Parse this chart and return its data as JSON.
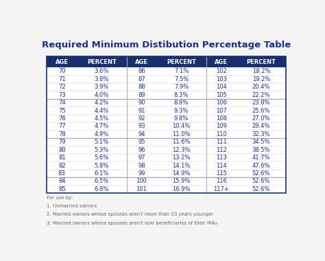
{
  "title": "Required Minimum Distibution Percentage Table",
  "title_color": "#1a2f8a",
  "header_bg": "#1a2f6e",
  "header_text_color": "#ffffff",
  "cell_text_color": "#1a2f8a",
  "separator_color": "#aaaacc",
  "thick_sep_color": "#aaaacc",
  "columns": [
    "AGE",
    "PERCENT",
    "AGE",
    "PERCENT",
    "AGE",
    "PERCENT"
  ],
  "data": [
    [
      "70",
      "3.6%",
      "86",
      "7.1%",
      "102",
      "18.2%"
    ],
    [
      "71",
      "3.8%",
      "87",
      "7.5%",
      "103",
      "19.2%"
    ],
    [
      "72",
      "3.9%",
      "88",
      "7.9%",
      "104",
      "20.4%"
    ],
    [
      "73",
      "4.0%",
      "89",
      "8.3%",
      "105",
      "22.2%"
    ],
    [
      "74",
      "4.2%",
      "90",
      "8.8%",
      "106",
      "23.8%"
    ],
    [
      "75",
      "4.4%",
      "91",
      "9.3%",
      "107",
      "25.6%"
    ],
    [
      "76",
      "4.5%",
      "92",
      "9.8%",
      "108",
      "27.0%"
    ],
    [
      "77",
      "4.7%",
      "93",
      "10.4%",
      "109",
      "29.4%"
    ],
    [
      "78",
      "4.9%",
      "94",
      "11.0%",
      "110",
      "32.3%"
    ],
    [
      "79",
      "5.1%",
      "95",
      "11.6%",
      "111",
      "34.5%"
    ],
    [
      "80",
      "5.3%",
      "96",
      "12.3%",
      "112",
      "38.5%"
    ],
    [
      "81",
      "5.6%",
      "97",
      "13.2%",
      "113",
      "41.7%"
    ],
    [
      "82",
      "5.8%",
      "98",
      "14.1%",
      "114",
      "47.6%"
    ],
    [
      "83",
      "6.1%",
      "99",
      "14.9%",
      "115",
      "52.6%"
    ],
    [
      "84",
      "6.5%",
      "100",
      "15.9%",
      "116",
      "52.6%"
    ],
    [
      "85",
      "6.8%",
      "101",
      "16.9%",
      "117+",
      "52.6%"
    ]
  ],
  "thick_sep_rows": [
    4,
    9,
    14
  ],
  "footer_lines": [
    "For use by:",
    "1. Unmarried owners",
    "2. Married owners whose spouses aren't more than 10 years younger",
    "3. Married owners whose spouses aren't sole beneficiaries of their IRAs"
  ],
  "footer_color": "#666666",
  "bg_color": "#f5f5f5"
}
